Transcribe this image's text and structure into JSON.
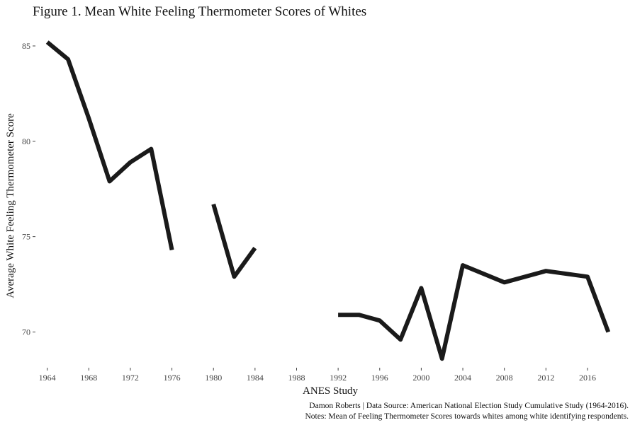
{
  "chart_data": {
    "type": "line",
    "title": "Figure 1. Mean White Feeling Thermometer Scores of Whites",
    "xlabel": "ANES Study",
    "ylabel": "Average White Feeling Thermometer Score",
    "xlim": [
      1963,
      2018.8
    ],
    "ylim": [
      68.2,
      86.0
    ],
    "x_ticks": [
      1964,
      1968,
      1972,
      1976,
      1980,
      1984,
      1988,
      1992,
      1996,
      2000,
      2004,
      2008,
      2012,
      2016
    ],
    "y_ticks": [
      70,
      75,
      80,
      85
    ],
    "grid": false,
    "legend": "none",
    "line_color": "#1a1a1a",
    "series": [
      {
        "segments": [
          [
            [
              1964,
              85.2
            ],
            [
              1966,
              84.3
            ],
            [
              1968,
              81.2
            ],
            [
              1970,
              77.9
            ],
            [
              1972,
              78.9
            ],
            [
              1974,
              79.6
            ],
            [
              1976,
              74.3
            ]
          ],
          [
            [
              1980,
              76.7
            ],
            [
              1982,
              72.9
            ],
            [
              1984,
              74.4
            ]
          ],
          [
            [
              1992,
              70.9
            ],
            [
              1994,
              70.9
            ],
            [
              1996,
              70.6
            ],
            [
              1998,
              69.6
            ],
            [
              2000,
              72.3
            ],
            [
              2002,
              68.6
            ],
            [
              2004,
              73.5
            ],
            [
              2008,
              72.6
            ],
            [
              2012,
              73.2
            ],
            [
              2016,
              72.9
            ],
            [
              2018,
              70.0
            ]
          ]
        ]
      }
    ],
    "caption": [
      "Damon Roberts | Data Source: American National Election Study Cumulative Study (1964-2016).",
      "Notes: Mean of Feeling Thermometer Scores towards whites among white identifying respondents."
    ]
  }
}
